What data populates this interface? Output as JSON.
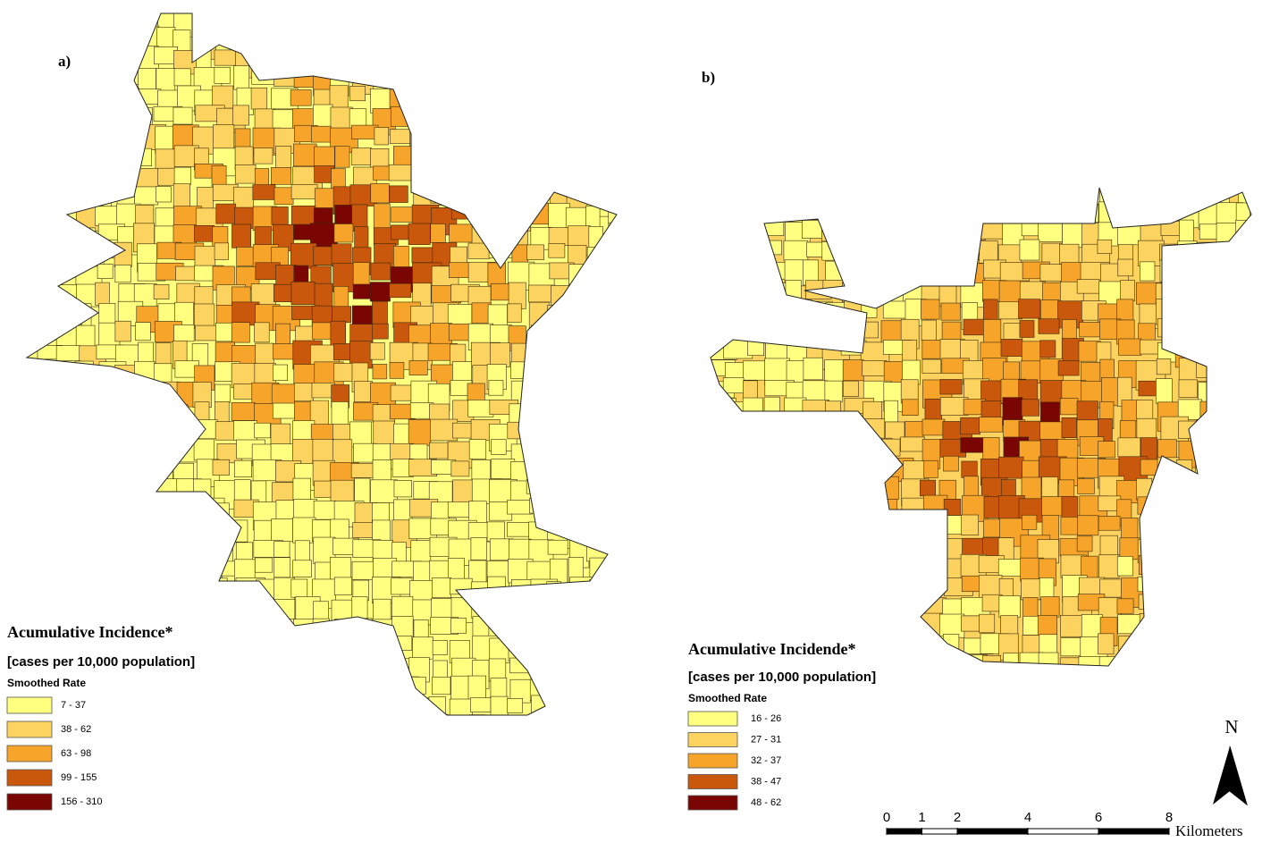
{
  "panels": [
    {
      "label": "a)",
      "legend_title": "Acumulative Incidence*",
      "legend_subtitle": "[cases per 10,000 population]",
      "legend_heading": "Smoothed Rate",
      "classes": [
        {
          "label": "7 - 37",
          "color": "#ffff80"
        },
        {
          "label": "38 - 62",
          "color": "#fcd35f"
        },
        {
          "label": "63 - 98",
          "color": "#f7a52a"
        },
        {
          "label": "99 - 155",
          "color": "#c9570c"
        },
        {
          "label": "156 - 310",
          "color": "#7a0603"
        }
      ]
    },
    {
      "label": "b)",
      "legend_title": "Acumulative Incidende*",
      "legend_subtitle": "[cases per 10,000 population]",
      "legend_heading": "Smoothed Rate",
      "classes": [
        {
          "label": "16 - 26",
          "color": "#ffff80"
        },
        {
          "label": "27 - 31",
          "color": "#fcd35f"
        },
        {
          "label": "32 - 37",
          "color": "#f7a52a"
        },
        {
          "label": "38 - 47",
          "color": "#c9570c"
        },
        {
          "label": "48 - 62",
          "color": "#7a0603"
        }
      ]
    }
  ],
  "north": "N",
  "scale": {
    "ticks": [
      0,
      1,
      2,
      4,
      6,
      8
    ],
    "unit": "Kilometers"
  }
}
